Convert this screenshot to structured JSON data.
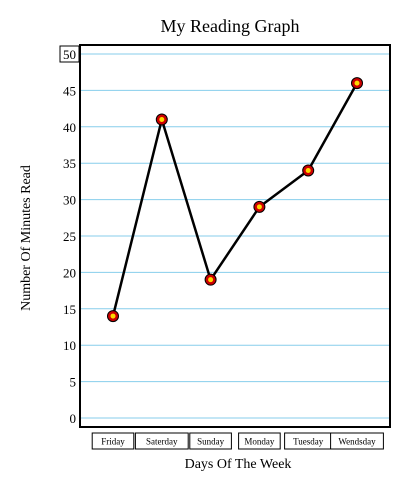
{
  "chart_data": {
    "type": "line",
    "title": "My Reading Graph",
    "xlabel": "Days Of The Week",
    "ylabel": "Number Of Minutes Read",
    "categories": [
      "Friday",
      "Saterday",
      "Sunday",
      "Monday",
      "Tuesday",
      "Wendsday"
    ],
    "series": [
      {
        "values": [
          14,
          41,
          19,
          29,
          34,
          46
        ]
      }
    ],
    "ylim": [
      0,
      50
    ],
    "yticks": [
      "0",
      "5",
      "10",
      "15",
      "20",
      "25",
      "30",
      "35",
      "40",
      "45",
      "50"
    ],
    "grid": true,
    "colors": {
      "grid": "#87ceeb",
      "line": "#000000",
      "marker_outer": "#cc0000",
      "marker_inner": "#ffd700",
      "frame": "#000000"
    }
  }
}
